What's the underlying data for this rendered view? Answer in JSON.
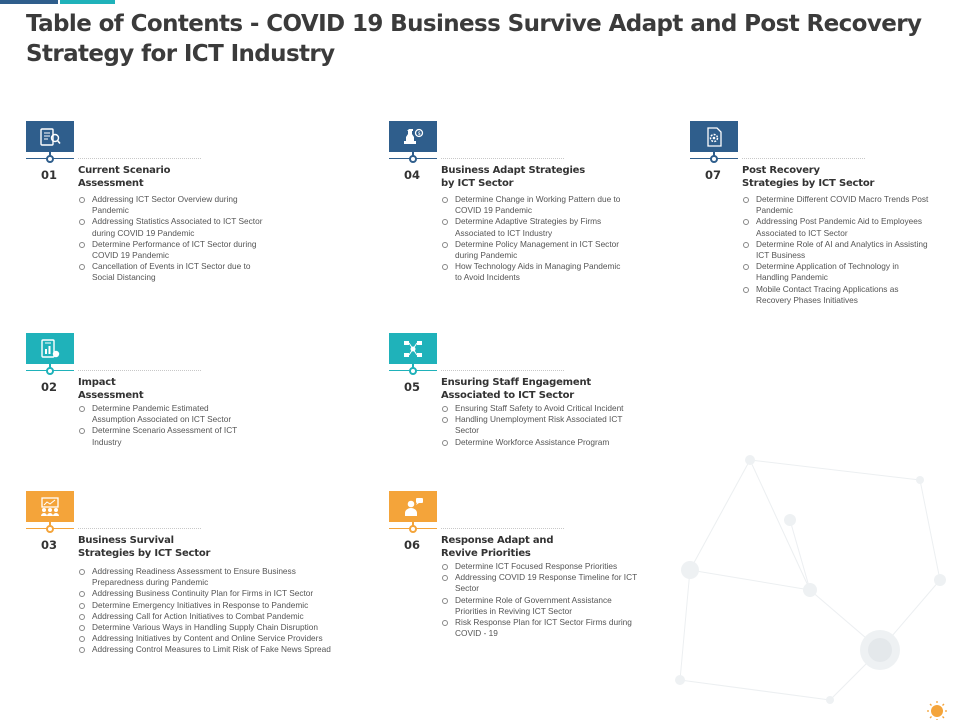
{
  "title": "Table of Contents - COVID 19 Business Survive Adapt and Post Recovery Strategy for ICT Industry",
  "colors": {
    "navy": "#2f5e8c",
    "teal": "#1fb2ba",
    "orange": "#f4a43a"
  },
  "sections": [
    {
      "number": "01",
      "heading": [
        "Current Scenario",
        "Assessment"
      ],
      "icon": "report-search-icon",
      "color": "navy",
      "bullets": [
        "Addressing ICT Sector Overview during Pandemic",
        "Addressing Statistics Associated to ICT Sector during COVID 19 Pandemic",
        "Determine Performance of ICT Sector during COVID 19 Pandemic",
        "Cancellation of Events in ICT Sector due to Social Distancing"
      ]
    },
    {
      "number": "02",
      "heading": [
        "Impact",
        "Assessment"
      ],
      "icon": "document-chart-icon",
      "color": "teal",
      "bullets": [
        "Determine Pandemic Estimated Assumption Associated on ICT Sector",
        "Determine Scenario Assessment of ICT Industry"
      ]
    },
    {
      "number": "03",
      "heading": [
        "Business Survival",
        "Strategies by ICT Sector"
      ],
      "icon": "team-presentation-icon",
      "color": "orange",
      "bullets": [
        "Addressing Readiness Assessment to Ensure Business Preparedness during Pandemic",
        "Addressing Business Continuity Plan for Firms in ICT Sector",
        "Determine Emergency Initiatives in Response to Pandemic",
        "Addressing Call for Action Initiatives to Combat Pandemic",
        "Determine Various Ways in Handling Supply Chain Disruption",
        "Addressing Initiatives by Content and Online Service Providers",
        "Addressing Control Measures to Limit Risk of Fake News Spread"
      ]
    },
    {
      "number": "04",
      "heading": [
        "Business Adapt Strategies",
        "by ICT Sector"
      ],
      "icon": "chess-strategy-icon",
      "color": "navy",
      "bullets": [
        "Determine Change in Working Pattern due to COVID 19 Pandemic",
        "Determine Adaptive Strategies by Firms Associated to ICT Industry",
        "Determine Policy Management in ICT Sector during Pandemic",
        "How Technology Aids in Managing Pandemic to Avoid Incidents"
      ]
    },
    {
      "number": "05",
      "heading": [
        "Ensuring Staff Engagement",
        "Associated to ICT Sector"
      ],
      "icon": "workflow-network-icon",
      "color": "teal",
      "bullets": [
        "Ensuring Staff Safety to Avoid Critical Incident",
        "Handling Unemployment Risk Associated ICT Sector",
        "Determine Workforce Assistance Program"
      ]
    },
    {
      "number": "06",
      "heading": [
        "Response Adapt and",
        "Revive Priorities"
      ],
      "icon": "speaker-chat-icon",
      "color": "orange",
      "bullets": [
        "Determine ICT Focused Response Priorities",
        "Addressing COVID 19 Response Timeline for ICT Sector",
        "Determine Role of Government Assistance Priorities in Reviving ICT Sector",
        "Risk Response Plan for ICT Sector Firms during COVID - 19"
      ]
    },
    {
      "number": "07",
      "heading": [
        "Post Recovery",
        "Strategies by ICT Sector"
      ],
      "icon": "document-gear-icon",
      "color": "navy",
      "bullets": [
        "Determine Different COVID Macro Trends Post Pandemic",
        "Addressing Post Pandemic Aid to Employees Associated to ICT Sector",
        "Determine Role of AI and Analytics in Assisting ICT Business",
        "Determine Application of Technology in Handling Pandemic",
        "Mobile Contact Tracing Applications as Recovery Phases Initiatives"
      ]
    }
  ]
}
